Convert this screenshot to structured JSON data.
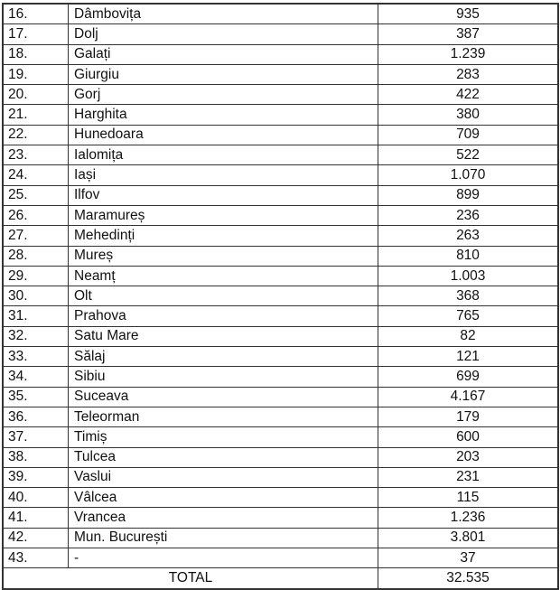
{
  "table": {
    "rows": [
      {
        "nr": "16.",
        "name": "Dâmbovița",
        "value": "935"
      },
      {
        "nr": "17.",
        "name": "Dolj",
        "value": "387"
      },
      {
        "nr": "18.",
        "name": "Galați",
        "value": "1.239"
      },
      {
        "nr": "19.",
        "name": "Giurgiu",
        "value": "283"
      },
      {
        "nr": "20.",
        "name": "Gorj",
        "value": "422"
      },
      {
        "nr": "21.",
        "name": "Harghita",
        "value": "380"
      },
      {
        "nr": "22.",
        "name": "Hunedoara",
        "value": "709"
      },
      {
        "nr": "23.",
        "name": "Ialomița",
        "value": "522"
      },
      {
        "nr": "24.",
        "name": "Iași",
        "value": "1.070"
      },
      {
        "nr": "25.",
        "name": "Ilfov",
        "value": "899"
      },
      {
        "nr": "26.",
        "name": "Maramureș",
        "value": "236"
      },
      {
        "nr": "27.",
        "name": "Mehedinți",
        "value": "263"
      },
      {
        "nr": "28.",
        "name": "Mureș",
        "value": "810"
      },
      {
        "nr": "29.",
        "name": "Neamț",
        "value": "1.003"
      },
      {
        "nr": "30.",
        "name": "Olt",
        "value": "368"
      },
      {
        "nr": "31.",
        "name": "Prahova",
        "value": "765"
      },
      {
        "nr": "32.",
        "name": "Satu Mare",
        "value": "82"
      },
      {
        "nr": "33.",
        "name": "Sălaj",
        "value": "121"
      },
      {
        "nr": "34.",
        "name": "Sibiu",
        "value": "699"
      },
      {
        "nr": "35.",
        "name": "Suceava",
        "value": "4.167"
      },
      {
        "nr": "36.",
        "name": "Teleorman",
        "value": "179"
      },
      {
        "nr": "37.",
        "name": "Timiș",
        "value": "600"
      },
      {
        "nr": "38.",
        "name": "Tulcea",
        "value": "203"
      },
      {
        "nr": "39.",
        "name": "Vaslui",
        "value": "231"
      },
      {
        "nr": "40.",
        "name": "Vâlcea",
        "value": "115"
      },
      {
        "nr": "41.",
        "name": "Vrancea",
        "value": "1.236"
      },
      {
        "nr": "42.",
        "name": "Mun. București",
        "value": "3.801"
      },
      {
        "nr": "43.",
        "name": "-",
        "value": "37"
      }
    ],
    "total": {
      "label": "TOTAL",
      "value": "32.535"
    }
  }
}
